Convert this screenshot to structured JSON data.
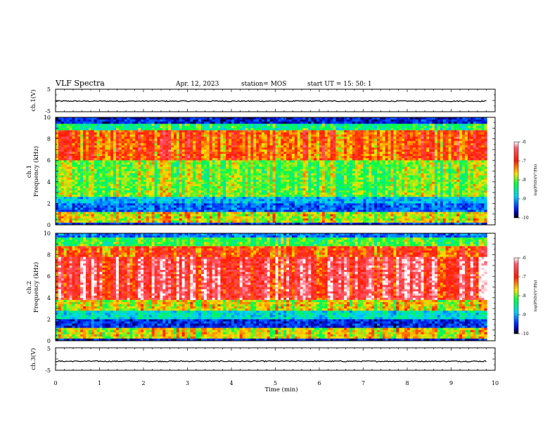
{
  "header": {
    "title": "VLF Spectra",
    "date": "Apr. 12, 2023",
    "station": "station= MOS",
    "start": "start  UT =   15: 50: 1"
  },
  "chart_data": [
    {
      "type": "line",
      "name": "ch1-waveform",
      "ylabel": "ch.1(V)",
      "ylim": [
        -5,
        5
      ],
      "yticks": [
        "5",
        "-5"
      ],
      "baseline": -0.3,
      "xlim": [
        0,
        10
      ]
    },
    {
      "type": "heatmap",
      "name": "ch1-spectrogram",
      "ylabel": "ch.1\nFrequency (kHz)",
      "ylabel_top": "ch.1",
      "ylabel_bottom": "Frequency (kHz)",
      "ylim": [
        0,
        10
      ],
      "yticks": [
        "0",
        "2",
        "4",
        "6",
        "8",
        "10"
      ],
      "xlim": [
        0,
        9.8
      ],
      "colorbar": {
        "label": "log(PSD)(V²/Hz)",
        "range": [
          -10,
          -6
        ],
        "ticks": [
          "-6",
          "-7",
          "-8",
          "-9",
          "-10"
        ]
      }
    },
    {
      "type": "heatmap",
      "name": "ch2-spectrogram",
      "ylabel_top": "ch.2",
      "ylabel_bottom": "Frequency (kHz)",
      "ylim": [
        0,
        10
      ],
      "yticks": [
        "0",
        "2",
        "4",
        "6",
        "8",
        "10"
      ],
      "xlim": [
        0,
        9.8
      ],
      "colorbar": {
        "label": "log(PSD)(V²/Hz)",
        "range": [
          -10,
          -6
        ],
        "ticks": [
          "-6",
          "-7",
          "-8",
          "-9",
          "-10"
        ]
      }
    },
    {
      "type": "line",
      "name": "ch3-waveform",
      "ylabel": "ch.3(V)",
      "ylim": [
        -5,
        5
      ],
      "yticks": [
        "5",
        "-5"
      ],
      "baseline": -1.0,
      "xlim": [
        0,
        10
      ]
    }
  ],
  "xaxis": {
    "label": "Time  (min)",
    "range": [
      0,
      10
    ],
    "ticks": [
      "0",
      "1",
      "2",
      "3",
      "4",
      "5",
      "6",
      "7",
      "8",
      "9",
      "10"
    ]
  }
}
